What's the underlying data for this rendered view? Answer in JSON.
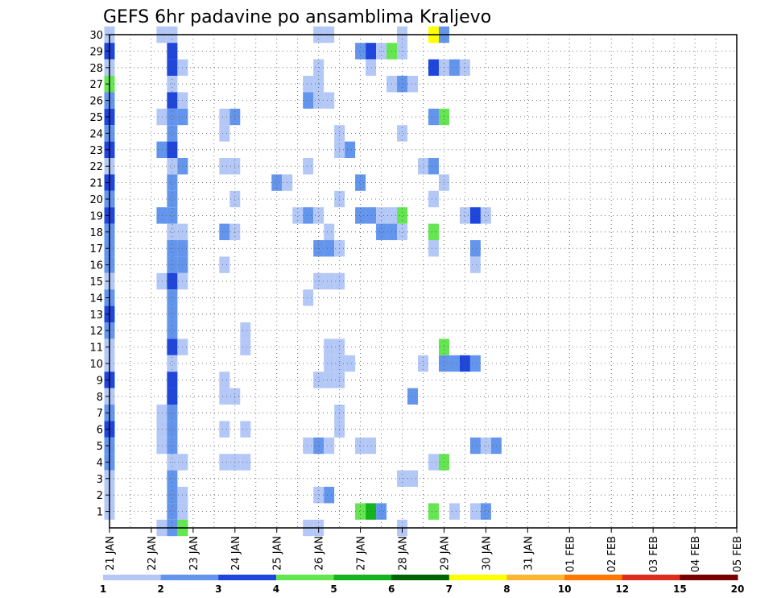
{
  "chart_data": {
    "type": "heatmap",
    "title": "GEFS 6hr padavine po ansamblima Kraljevo",
    "y_ticks": [
      "1",
      "2",
      "3",
      "4",
      "5",
      "6",
      "7",
      "8",
      "9",
      "10",
      "11",
      "12",
      "13",
      "14",
      "15",
      "16",
      "17",
      "18",
      "19",
      "20",
      "21",
      "22",
      "23",
      "24",
      "25",
      "26",
      "27",
      "28",
      "29",
      "30"
    ],
    "x_ticks": [
      "21 JAN",
      "22 JAN",
      "23 JAN",
      "24 JAN",
      "25 JAN",
      "26 JAN",
      "27 JAN",
      "28 JAN",
      "29 JAN",
      "30 JAN",
      "31 JAN",
      "01 FEB",
      "02 FEB",
      "03 FEB",
      "04 FEB",
      "05 FEB"
    ],
    "ylim": [
      0,
      30
    ],
    "xlim_days": [
      0,
      15
    ],
    "grid": true,
    "colorbar": {
      "labels": [
        "1",
        "2",
        "3",
        "4",
        "5",
        "6",
        "7",
        "8",
        "10",
        "12",
        "15",
        "20"
      ],
      "colors": [
        "#b4c8f7",
        "#6495ed",
        "#1e46dc",
        "#64e650",
        "#14b41e",
        "#006400",
        "#ffff00",
        "#ffb432",
        "#ff7800",
        "#dc2d1e",
        "#780000"
      ]
    },
    "cells_note": "each cell: [day_offset_from_21JAN (6h steps of 0.25), member, precip_mm]",
    "cells": [
      [
        0,
        30,
        1
      ],
      [
        0,
        29,
        3
      ],
      [
        0,
        28,
        1
      ],
      [
        0,
        27,
        4
      ],
      [
        0,
        26,
        2
      ],
      [
        0,
        25,
        3
      ],
      [
        0,
        24,
        2
      ],
      [
        0,
        23,
        3
      ],
      [
        0,
        22,
        1
      ],
      [
        0,
        21,
        3
      ],
      [
        0,
        20,
        2
      ],
      [
        0,
        19,
        3
      ],
      [
        0,
        18,
        2
      ],
      [
        0,
        17,
        2
      ],
      [
        0,
        16,
        2
      ],
      [
        0,
        15,
        1
      ],
      [
        0,
        14,
        2
      ],
      [
        0,
        13,
        3
      ],
      [
        0,
        12,
        2
      ],
      [
        0,
        11,
        1
      ],
      [
        0,
        10,
        1
      ],
      [
        0,
        9,
        3
      ],
      [
        0,
        8,
        1
      ],
      [
        0,
        7,
        2
      ],
      [
        0,
        6,
        3
      ],
      [
        0,
        5,
        2
      ],
      [
        0,
        4,
        2
      ],
      [
        0,
        3,
        1
      ],
      [
        0,
        2,
        1
      ],
      [
        0,
        1,
        1
      ],
      [
        1.25,
        30,
        1
      ],
      [
        1.5,
        30,
        1
      ],
      [
        1.5,
        29,
        3
      ],
      [
        1.5,
        28,
        3
      ],
      [
        1.75,
        28,
        1
      ],
      [
        1.5,
        27,
        1
      ],
      [
        1.5,
        26,
        3
      ],
      [
        1.75,
        26,
        1
      ],
      [
        1.25,
        25,
        1
      ],
      [
        1.5,
        25,
        2
      ],
      [
        1.75,
        25,
        2
      ],
      [
        1.5,
        24,
        2
      ],
      [
        1.25,
        23,
        2
      ],
      [
        1.5,
        23,
        3
      ],
      [
        1.5,
        22,
        1
      ],
      [
        1.75,
        22,
        2
      ],
      [
        1.5,
        21,
        2
      ],
      [
        1.5,
        20,
        2
      ],
      [
        1.25,
        19,
        2
      ],
      [
        1.5,
        19,
        2
      ],
      [
        1.5,
        18,
        1
      ],
      [
        1.75,
        18,
        1
      ],
      [
        1.5,
        17,
        2
      ],
      [
        1.75,
        17,
        2
      ],
      [
        1.5,
        16,
        2
      ],
      [
        1.75,
        16,
        2
      ],
      [
        1.25,
        15,
        1
      ],
      [
        1.5,
        15,
        3
      ],
      [
        1.75,
        15,
        1
      ],
      [
        1.5,
        14,
        2
      ],
      [
        1.5,
        13,
        2
      ],
      [
        1.5,
        12,
        2
      ],
      [
        1.5,
        11,
        3
      ],
      [
        1.75,
        11,
        1
      ],
      [
        1.5,
        10,
        1
      ],
      [
        1.5,
        9,
        3
      ],
      [
        1.5,
        8,
        3
      ],
      [
        1.25,
        7,
        1
      ],
      [
        1.5,
        7,
        2
      ],
      [
        1.25,
        6,
        1
      ],
      [
        1.5,
        6,
        2
      ],
      [
        1.25,
        5,
        1
      ],
      [
        1.5,
        5,
        2
      ],
      [
        1.5,
        4,
        1
      ],
      [
        1.75,
        4,
        1
      ],
      [
        1.5,
        3,
        2
      ],
      [
        1.5,
        2,
        2
      ],
      [
        1.75,
        2,
        1
      ],
      [
        1.5,
        1,
        2
      ],
      [
        1.75,
        1,
        1
      ],
      [
        1.75,
        0,
        4
      ],
      [
        1.25,
        0,
        1
      ],
      [
        1.5,
        0,
        2
      ],
      [
        2.75,
        24,
        1
      ],
      [
        2.75,
        25,
        1
      ],
      [
        3,
        25,
        2
      ],
      [
        2.75,
        22,
        1
      ],
      [
        3,
        22,
        1
      ],
      [
        3,
        20,
        1
      ],
      [
        2.75,
        18,
        2
      ],
      [
        3,
        18,
        1
      ],
      [
        2.75,
        16,
        1
      ],
      [
        2.75,
        9,
        1
      ],
      [
        2.75,
        8,
        1
      ],
      [
        3,
        8,
        1
      ],
      [
        2.75,
        6,
        1
      ],
      [
        3.25,
        6,
        1
      ],
      [
        3.25,
        12,
        1
      ],
      [
        3.25,
        11,
        1
      ],
      [
        2.75,
        4,
        1
      ],
      [
        3,
        4,
        1
      ],
      [
        3.25,
        4,
        1
      ],
      [
        4,
        21,
        2
      ],
      [
        4.25,
        21,
        1
      ],
      [
        4.5,
        19,
        1
      ],
      [
        4.75,
        19,
        2
      ],
      [
        5,
        19,
        1
      ],
      [
        4.75,
        27,
        1
      ],
      [
        5,
        27,
        1
      ],
      [
        5,
        28,
        1
      ],
      [
        5,
        26,
        1
      ],
      [
        4.75,
        26,
        2
      ],
      [
        5.25,
        26,
        1
      ],
      [
        4.75,
        22,
        1
      ],
      [
        5.25,
        18,
        1
      ],
      [
        5,
        17,
        2
      ],
      [
        5.25,
        17,
        2
      ],
      [
        5.5,
        17,
        1
      ],
      [
        5,
        15,
        1
      ],
      [
        5.25,
        15,
        1
      ],
      [
        5.5,
        15,
        1
      ],
      [
        4.75,
        14,
        1
      ],
      [
        4.75,
        5,
        1
      ],
      [
        5,
        5,
        2
      ],
      [
        5.25,
        5,
        1
      ],
      [
        5,
        2,
        1
      ],
      [
        5.25,
        2,
        2
      ],
      [
        4.75,
        0,
        1
      ],
      [
        5,
        0,
        1
      ],
      [
        5,
        30,
        1
      ],
      [
        5.25,
        30,
        1
      ],
      [
        5.5,
        20,
        1
      ],
      [
        5.5,
        23,
        1
      ],
      [
        5.75,
        23,
        2
      ],
      [
        5.25,
        11,
        1
      ],
      [
        5.5,
        11,
        1
      ],
      [
        5.25,
        10,
        1
      ],
      [
        5.5,
        10,
        1
      ],
      [
        5.75,
        10,
        1
      ],
      [
        5,
        9,
        1
      ],
      [
        5.25,
        9,
        1
      ],
      [
        5.5,
        9,
        1
      ],
      [
        5.5,
        7,
        1
      ],
      [
        5.5,
        6,
        1
      ],
      [
        5.5,
        24,
        1
      ],
      [
        6,
        29,
        2
      ],
      [
        6.25,
        29,
        3
      ],
      [
        6.5,
        29,
        1
      ],
      [
        6.75,
        29,
        4
      ],
      [
        7,
        29,
        1
      ],
      [
        7,
        30,
        1
      ],
      [
        6,
        21,
        2
      ],
      [
        6,
        19,
        2
      ],
      [
        6.25,
        19,
        2
      ],
      [
        6.5,
        19,
        1
      ],
      [
        6.75,
        19,
        1
      ],
      [
        7,
        19,
        4
      ],
      [
        6.5,
        18,
        2
      ],
      [
        6.75,
        18,
        2
      ],
      [
        7,
        18,
        1
      ],
      [
        6,
        5,
        1
      ],
      [
        6.25,
        5,
        1
      ],
      [
        6,
        1,
        4
      ],
      [
        6.25,
        1,
        5
      ],
      [
        6.5,
        1,
        2
      ],
      [
        6.25,
        28,
        1
      ],
      [
        6.75,
        27,
        1
      ],
      [
        7,
        27,
        2
      ],
      [
        7.25,
        27,
        1
      ],
      [
        7,
        24,
        1
      ],
      [
        7.25,
        8,
        2
      ],
      [
        7,
        3,
        1
      ],
      [
        7.25,
        3,
        1
      ],
      [
        7,
        0,
        1
      ],
      [
        7.75,
        30,
        7
      ],
      [
        8,
        30,
        2
      ],
      [
        7.75,
        28,
        3
      ],
      [
        8,
        28,
        1
      ],
      [
        8.25,
        28,
        2
      ],
      [
        8.5,
        28,
        1
      ],
      [
        7.75,
        25,
        2
      ],
      [
        8,
        25,
        4
      ],
      [
        7.5,
        22,
        1
      ],
      [
        7.75,
        22,
        2
      ],
      [
        8,
        21,
        1
      ],
      [
        7.75,
        20,
        1
      ],
      [
        7.75,
        18,
        4
      ],
      [
        7.75,
        17,
        1
      ],
      [
        7.5,
        10,
        1
      ],
      [
        8,
        10,
        2
      ],
      [
        8.25,
        10,
        2
      ],
      [
        8.5,
        10,
        3
      ],
      [
        8.75,
        10,
        2
      ],
      [
        8,
        11,
        4
      ],
      [
        7.75,
        4,
        1
      ],
      [
        8,
        4,
        4
      ],
      [
        7.75,
        1,
        4
      ],
      [
        8.25,
        1,
        1
      ],
      [
        8.5,
        19,
        1
      ],
      [
        8.75,
        19,
        3
      ],
      [
        9,
        19,
        1
      ],
      [
        8.75,
        17,
        2
      ],
      [
        8.75,
        16,
        1
      ],
      [
        9,
        5,
        1
      ],
      [
        8.75,
        5,
        2
      ],
      [
        9.25,
        5,
        2
      ],
      [
        8.75,
        1,
        1
      ],
      [
        9,
        1,
        2
      ]
    ]
  }
}
